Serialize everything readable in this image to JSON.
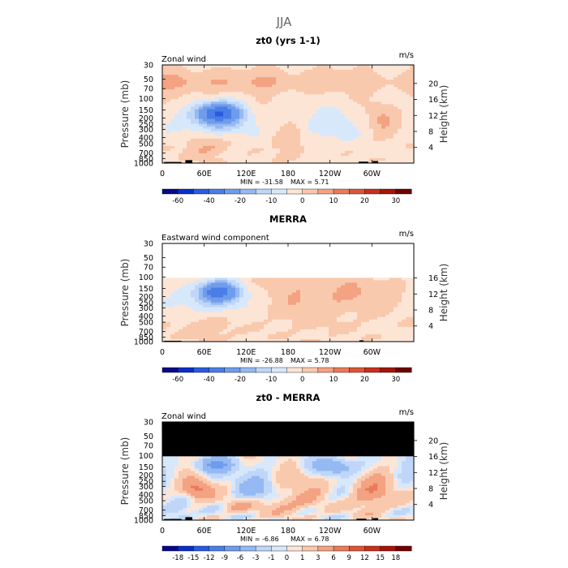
{
  "figure_title": "JJA",
  "colors": {
    "panel_seq": [
      "#08088a",
      "#0a2ec8",
      "#2a5bde",
      "#4a7ee6",
      "#6f9cec",
      "#95b9f2",
      "#bfd6f8",
      "#d8e8fb",
      "#fde5d6",
      "#f9c9ae",
      "#f3a282",
      "#ea7a5a",
      "#dd5437",
      "#c8301c",
      "#a31508",
      "#6e0000"
    ],
    "diff_seq": [
      "#08088a",
      "#0a2ec8",
      "#2a5bde",
      "#4a7ee6",
      "#6f9cec",
      "#95b9f2",
      "#bfd6f8",
      "#d8e8fb",
      "#fde5d6",
      "#f9c9ae",
      "#f3a282",
      "#ea7a5a",
      "#dd5437",
      "#c8301c",
      "#a31508",
      "#6e0000"
    ],
    "masked": "#000000",
    "axis": "#000000"
  },
  "chart_data": [
    {
      "type": "heatmap",
      "title": "zt0 (yrs 1-1)",
      "subtitle_left": "Zonal wind",
      "units": "m/s",
      "ylabel": "Pressure (mb)",
      "ylabel_right": "Height (km)",
      "pressure_ticks": [
        "30",
        "50",
        "70",
        "100",
        "150",
        "200",
        "250",
        "300",
        "400",
        "500",
        "700",
        "850",
        "1000"
      ],
      "height_ticks": [
        "20",
        "16",
        "12",
        "8",
        "4"
      ],
      "lon_ticks": [
        "0",
        "60E",
        "120E",
        "180",
        "120W",
        "60W"
      ],
      "ylim_mb": [
        1000,
        30
      ],
      "xlim_deg": [
        0,
        360
      ],
      "min_label": "MIN = -31.58",
      "max_label": "MAX =   5.71",
      "min": -31.58,
      "max": 5.71,
      "colorbar_labels": [
        "-60",
        "-40",
        "-20",
        "-10",
        "0",
        "10",
        "20",
        "30"
      ],
      "colorbar_levels": [
        -70,
        -60,
        -50,
        -40,
        -30,
        -20,
        -15,
        -10,
        -5,
        0,
        5,
        10,
        15,
        20,
        25,
        30,
        35
      ],
      "palette": "panel_seq",
      "data_top_mb": 30,
      "blobs": [
        {
          "lon": 0,
          "lon_w": 400,
          "p": 55,
          "p_w": 22,
          "amp": 7.0
        },
        {
          "lon": 80,
          "lon_w": 32,
          "p": 165,
          "p_w": 60,
          "amp": -34
        },
        {
          "lon": 75,
          "lon_w": 55,
          "p": 250,
          "p_w": 130,
          "amp": -10
        },
        {
          "lon": 245,
          "lon_w": 40,
          "p": 250,
          "p_w": 150,
          "amp": -7
        },
        {
          "lon": 60,
          "lon_w": 30,
          "p": 550,
          "p_w": 260,
          "amp": 8
        },
        {
          "lon": 315,
          "lon_w": 20,
          "p": 200,
          "p_w": 110,
          "amp": 8
        },
        {
          "lon": 180,
          "lon_w": 22,
          "p": 480,
          "p_w": 260,
          "amp": 5
        }
      ],
      "base": -1.5,
      "terrain": [
        {
          "lon": 15,
          "w": 25,
          "p": 960
        },
        {
          "lon": 38,
          "w": 10,
          "p": 900
        },
        {
          "lon": 288,
          "w": 14,
          "p": 950
        },
        {
          "lon": 305,
          "w": 8,
          "p": 930
        }
      ]
    },
    {
      "type": "heatmap",
      "title": "MERRA",
      "subtitle_left": "Eastward wind component",
      "units": "m/s",
      "ylabel": "Pressure (mb)",
      "ylabel_right": "Height (km)",
      "pressure_ticks": [
        "30",
        "50",
        "70",
        "100",
        "150",
        "200",
        "250",
        "300",
        "400",
        "500",
        "700",
        "850",
        "1000"
      ],
      "height_ticks": [
        "16",
        "12",
        "8",
        "4"
      ],
      "lon_ticks": [
        "0",
        "60E",
        "120E",
        "180",
        "120W",
        "60W"
      ],
      "ylim_mb": [
        1000,
        30
      ],
      "xlim_deg": [
        0,
        360
      ],
      "min_label": "MIN = -26.88",
      "max_label": "MAX =   5.78",
      "min": -26.88,
      "max": 5.78,
      "colorbar_labels": [
        "-60",
        "-40",
        "-20",
        "-10",
        "0",
        "10",
        "20",
        "30"
      ],
      "colorbar_levels": [
        -70,
        -60,
        -50,
        -40,
        -30,
        -20,
        -15,
        -10,
        -5,
        0,
        5,
        10,
        15,
        20,
        25,
        30,
        35
      ],
      "palette": "panel_seq",
      "data_top_mb": 100,
      "blobs": [
        {
          "lon": 80,
          "lon_w": 30,
          "p": 165,
          "p_w": 60,
          "amp": -29
        },
        {
          "lon": 70,
          "lon_w": 60,
          "p": 230,
          "p_w": 130,
          "amp": -8
        },
        {
          "lon": 215,
          "lon_w": 70,
          "p": 200,
          "p_w": 200,
          "amp": 6
        },
        {
          "lon": 60,
          "lon_w": 35,
          "p": 600,
          "p_w": 250,
          "amp": 6
        },
        {
          "lon": 300,
          "lon_w": 50,
          "p": 180,
          "p_w": 100,
          "amp": 4
        }
      ],
      "base": -1.2,
      "terrain": [
        {
          "lon": 15,
          "w": 25,
          "p": 970
        },
        {
          "lon": 285,
          "w": 6,
          "p": 955
        }
      ]
    },
    {
      "type": "heatmap",
      "title": "zt0 - MERRA",
      "subtitle_left": "Zonal wind",
      "units": "m/s",
      "ylabel": "Pressure (mb)",
      "ylabel_right": "Height (km)",
      "pressure_ticks": [
        "30",
        "50",
        "70",
        "100",
        "150",
        "200",
        "250",
        "300",
        "400",
        "500",
        "700",
        "850",
        "1000"
      ],
      "height_ticks": [
        "20",
        "16",
        "12",
        "8",
        "4"
      ],
      "lon_ticks": [
        "0",
        "60E",
        "120E",
        "180",
        "120W",
        "60W"
      ],
      "ylim_mb": [
        1000,
        30
      ],
      "xlim_deg": [
        0,
        360
      ],
      "min_label": "MIN =  -6.86",
      "max_label": "MAX =   6.78",
      "min": -6.86,
      "max": 6.78,
      "colorbar_labels": [
        "-18",
        "-15",
        "-12",
        "-9",
        "-6",
        "-3",
        "-1",
        "0",
        "1",
        "3",
        "6",
        "9",
        "12",
        "15",
        "18"
      ],
      "colorbar_levels": [
        -21,
        -18,
        -15,
        -12,
        -9,
        -6,
        -3,
        -1,
        0,
        1,
        3,
        6,
        9,
        12,
        15,
        18,
        21
      ],
      "palette": "diff_seq",
      "data_top_mb": 100,
      "masked_above_mb": 100,
      "blobs": [
        {
          "lon": 50,
          "lon_w": 20,
          "p": 330,
          "p_w": 120,
          "amp": 7
        },
        {
          "lon": 300,
          "lon_w": 30,
          "p": 380,
          "p_w": 250,
          "amp": 5
        },
        {
          "lon": 170,
          "lon_w": 50,
          "p": 560,
          "p_w": 200,
          "amp": 4
        },
        {
          "lon": 75,
          "lon_w": 30,
          "p": 140,
          "p_w": 40,
          "amp": -6
        },
        {
          "lon": 250,
          "lon_w": 30,
          "p": 150,
          "p_w": 50,
          "amp": -6
        },
        {
          "lon": 135,
          "lon_w": 30,
          "p": 350,
          "p_w": 200,
          "amp": -4
        },
        {
          "lon": 20,
          "lon_w": 20,
          "p": 700,
          "p_w": 200,
          "amp": -3
        },
        {
          "lon": 210,
          "lon_w": 30,
          "p": 250,
          "p_w": 120,
          "amp": 3
        },
        {
          "lon": 110,
          "lon_w": 20,
          "p": 600,
          "p_w": 150,
          "amp": 3
        }
      ],
      "base": 0,
      "terrain": [
        {
          "lon": 15,
          "w": 25,
          "p": 960
        },
        {
          "lon": 38,
          "w": 10,
          "p": 900
        },
        {
          "lon": 285,
          "w": 14,
          "p": 950
        },
        {
          "lon": 305,
          "w": 8,
          "p": 930
        }
      ]
    }
  ]
}
